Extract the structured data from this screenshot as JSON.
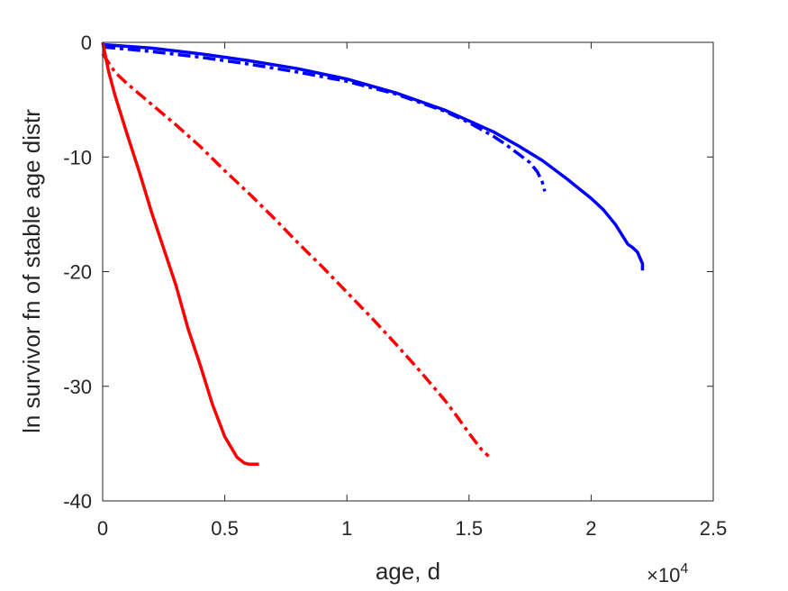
{
  "chart_data": {
    "type": "line",
    "xlabel": "age, d",
    "ylabel": "ln survivor fn of stable age distr",
    "x_exponent_label": "×10",
    "x_exponent_power": "4",
    "xlim": [
      0,
      25000
    ],
    "ylim": [
      -40,
      0
    ],
    "x_ticks": [
      0,
      5000,
      10000,
      15000,
      20000,
      25000
    ],
    "x_tick_labels": [
      "0",
      "0.5",
      "1",
      "1.5",
      "2",
      "2.5"
    ],
    "y_ticks": [
      0,
      -10,
      -20,
      -30,
      -40
    ],
    "y_tick_labels": [
      "0",
      "-10",
      "-20",
      "-30",
      "-40"
    ],
    "grid": false,
    "box": true,
    "series": [
      {
        "color": "#0000FF",
        "style": "solid",
        "x": [
          0,
          2000,
          4000,
          6000,
          8000,
          10000,
          12000,
          14000,
          16000,
          17000,
          18000,
          19000,
          20000,
          20500,
          21000,
          21500,
          21700,
          21900,
          22000,
          22100,
          22100
        ],
        "y": [
          -0.2,
          -0.5,
          -1.0,
          -1.6,
          -2.3,
          -3.2,
          -4.4,
          -5.9,
          -7.8,
          -9.0,
          -10.3,
          -11.9,
          -13.6,
          -14.6,
          -15.9,
          -17.6,
          -17.9,
          -18.3,
          -18.8,
          -19.3,
          -19.9
        ]
      },
      {
        "color": "#0000FF",
        "style": "dashdot",
        "x": [
          0,
          1000,
          2000,
          4000,
          6000,
          8000,
          10000,
          12000,
          14000,
          15000,
          16000,
          16500,
          17000,
          17500,
          17800,
          18000,
          18100
        ],
        "y": [
          -0.4,
          -0.6,
          -0.8,
          -1.3,
          -1.9,
          -2.6,
          -3.4,
          -4.5,
          -6.0,
          -7.0,
          -8.2,
          -8.9,
          -9.7,
          -10.5,
          -11.3,
          -12.2,
          -13.0
        ]
      },
      {
        "color": "#FF0000",
        "style": "solid",
        "x": [
          0,
          250,
          500,
          1000,
          1500,
          2000,
          2500,
          3000,
          3500,
          4000,
          4500,
          5000,
          5500,
          5800,
          6000,
          6200,
          6400
        ],
        "y": [
          0,
          -2.6,
          -4.6,
          -8.0,
          -11.3,
          -14.8,
          -18.0,
          -21.2,
          -25.0,
          -28.2,
          -31.6,
          -34.4,
          -36.2,
          -36.7,
          -36.8,
          -36.8,
          -36.8
        ]
      },
      {
        "color": "#FF0000",
        "style": "dashdot",
        "x": [
          0,
          500,
          1000,
          2000,
          3000,
          4000,
          5000,
          6000,
          7000,
          8000,
          9000,
          10000,
          11000,
          12000,
          13000,
          14000,
          14500,
          15000,
          15500,
          15800
        ],
        "y": [
          -1.0,
          -2.6,
          -3.6,
          -5.4,
          -7.2,
          -9.1,
          -11.2,
          -13.2,
          -15.3,
          -17.5,
          -19.6,
          -21.8,
          -24.0,
          -26.3,
          -28.7,
          -31.2,
          -32.6,
          -34.1,
          -35.5,
          -36.1
        ]
      }
    ]
  }
}
